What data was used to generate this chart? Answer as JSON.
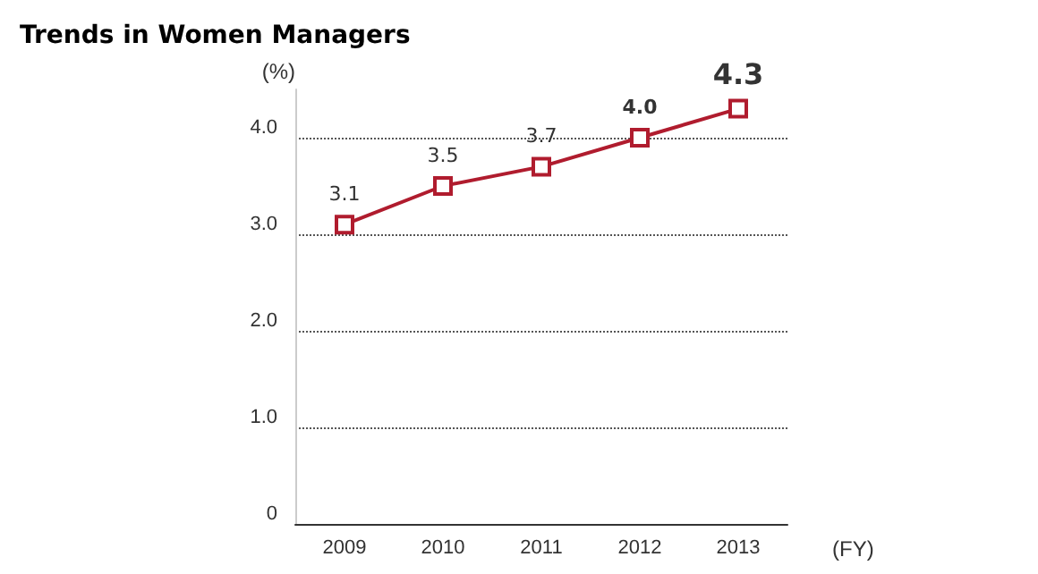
{
  "chart_data": {
    "type": "line",
    "title": "Trends in Women Managers",
    "ylabel": "(%)",
    "xlabel": "(FY)",
    "categories": [
      "2009",
      "2010",
      "2011",
      "2012",
      "2013"
    ],
    "series": [
      {
        "color": "#b01c2e",
        "values": [
          3.1,
          3.5,
          3.7,
          4.0,
          4.3
        ],
        "value_labels": [
          "3.1",
          "3.5",
          "3.7",
          "4.0",
          "4.3"
        ]
      }
    ],
    "ylim": [
      0,
      4.5
    ],
    "yticks": [
      0,
      {
        "value": 1,
        "label": "1.0"
      },
      {
        "value": 2,
        "label": "2.0"
      },
      {
        "value": 3,
        "label": "3.0"
      },
      {
        "value": 4,
        "label": "4.0"
      }
    ],
    "grid": "y",
    "marker": "square",
    "line_style": "solid"
  }
}
